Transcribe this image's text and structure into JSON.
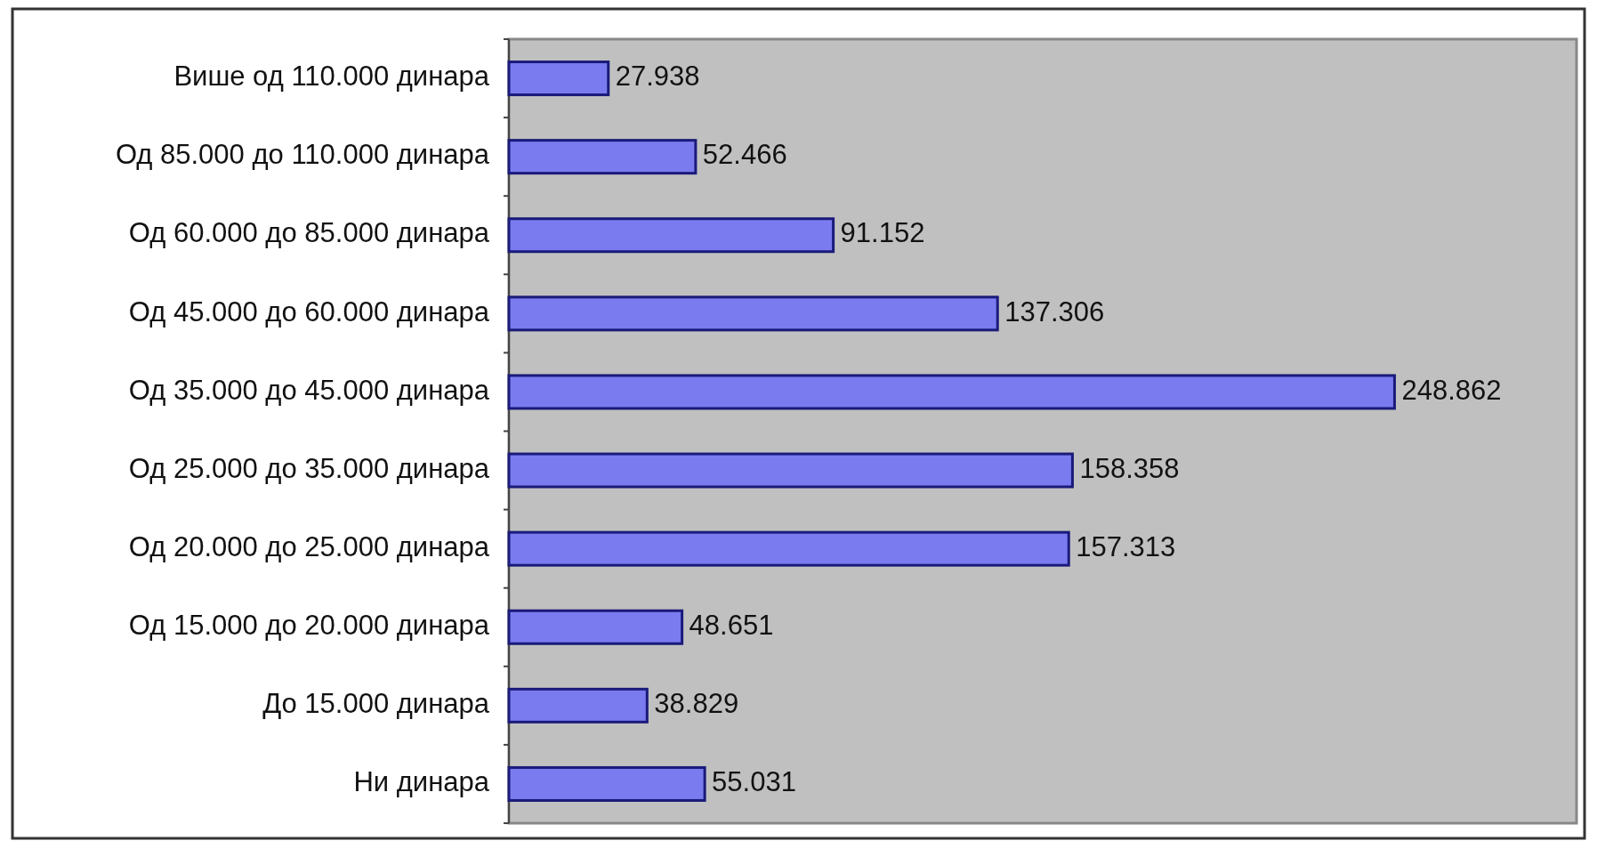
{
  "chart_data": {
    "type": "bar",
    "orientation": "horizontal",
    "categories": [
      "Више од 110.000 динара",
      "Од 85.000 до 110.000 динара",
      "Од 60.000 до 85.000 динара",
      "Од 45.000 до 60.000 динара",
      "Од 35.000 до 45.000 динара",
      "Од 25.000 до 35.000 динара",
      "Од 20.000 до 25.000 динара",
      "Од 15.000 до 20.000 динара",
      "До 15.000 динара",
      "Ни динара"
    ],
    "values": [
      27.938,
      52.466,
      91.152,
      137.306,
      248.862,
      158.358,
      157.313,
      48.651,
      38.829,
      55.031
    ],
    "value_labels": [
      "27.938",
      "52.466",
      "91.152",
      "137.306",
      "248.862",
      "158.358",
      "157.313",
      "48.651",
      "38.829",
      "55.031"
    ],
    "color": "#7b7bf0",
    "xlim": [
      0,
      300
    ],
    "tick_labels": "y"
  }
}
